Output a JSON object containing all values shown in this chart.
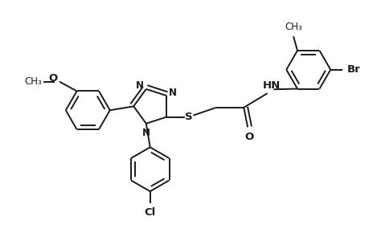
{
  "bg_color": "#ffffff",
  "line_color": "#1a1a1a",
  "line_width": 1.4,
  "font_size": 8.5,
  "figsize": [
    4.6,
    3.0
  ],
  "dpi": 100,
  "xlim": [
    0,
    4.6
  ],
  "ylim": [
    0,
    3.0
  ]
}
